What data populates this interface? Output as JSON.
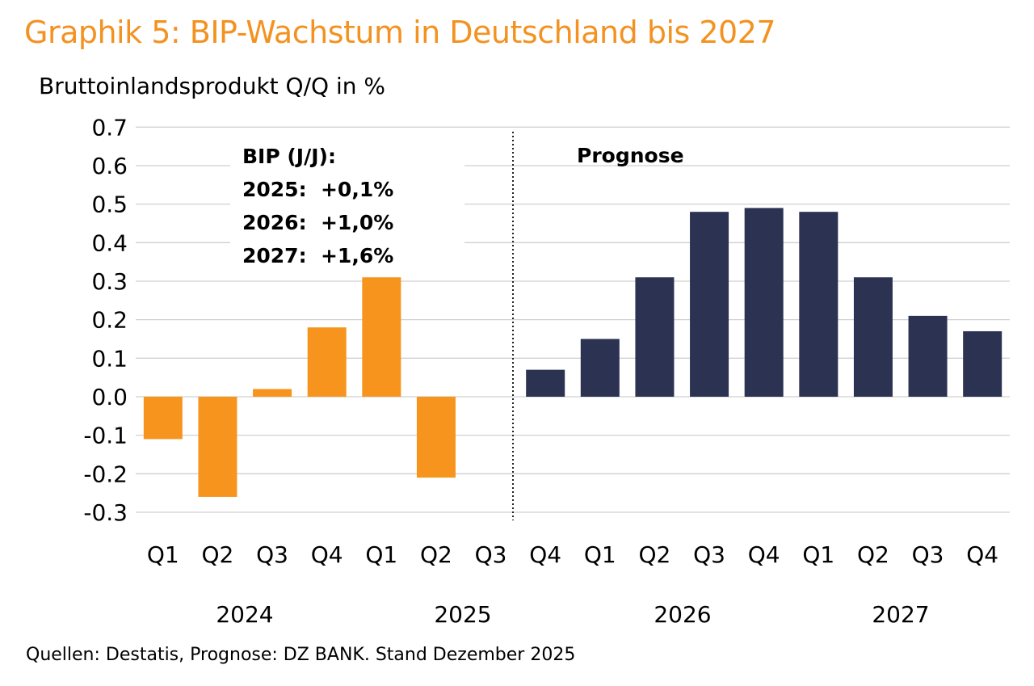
{
  "chart_data": {
    "type": "bar",
    "title": "Graphik 5: BIP-Wachstum in Deutschland bis 2027",
    "ylabel": "Bruttoinlandsprodukt Q/Q in %",
    "source": "Quellen: Destatis, Prognose: DZ BANK. Stand Dezember 2025",
    "ylim": [
      -0.3,
      0.7
    ],
    "yticks": [
      "0.7",
      "0.6",
      "0.5",
      "0.4",
      "0.3",
      "0.2",
      "0.1",
      "0.0",
      "-0.1",
      "-0.2",
      "-0.3"
    ],
    "ytick_values": [
      0.7,
      0.6,
      0.5,
      0.4,
      0.3,
      0.2,
      0.1,
      0.0,
      -0.1,
      -0.2,
      -0.3
    ],
    "grid": true,
    "categories": [
      "Q1",
      "Q2",
      "Q3",
      "Q4",
      "Q1",
      "Q2",
      "Q3",
      "Q4",
      "Q1",
      "Q2",
      "Q3",
      "Q4",
      "Q1",
      "Q2",
      "Q3",
      "Q4"
    ],
    "years": [
      "2024",
      "2025",
      "2026",
      "2027"
    ],
    "values": [
      -0.11,
      -0.26,
      0.02,
      0.18,
      0.31,
      -0.21,
      null,
      0.07,
      0.15,
      0.31,
      0.48,
      0.49,
      0.48,
      0.31,
      0.21,
      0.17
    ],
    "actual_count": 7,
    "colors": {
      "actual": "#f7941d",
      "forecast": "#2b3252",
      "title": "#f39220",
      "grid": "#d0d0d0"
    },
    "annotations": {
      "forecast_label": "Prognose",
      "yoy": [
        "BIP (J/J):",
        "2025:  +0,1%",
        "2026:  +1,0%",
        "2027:  +1,6%"
      ]
    }
  }
}
